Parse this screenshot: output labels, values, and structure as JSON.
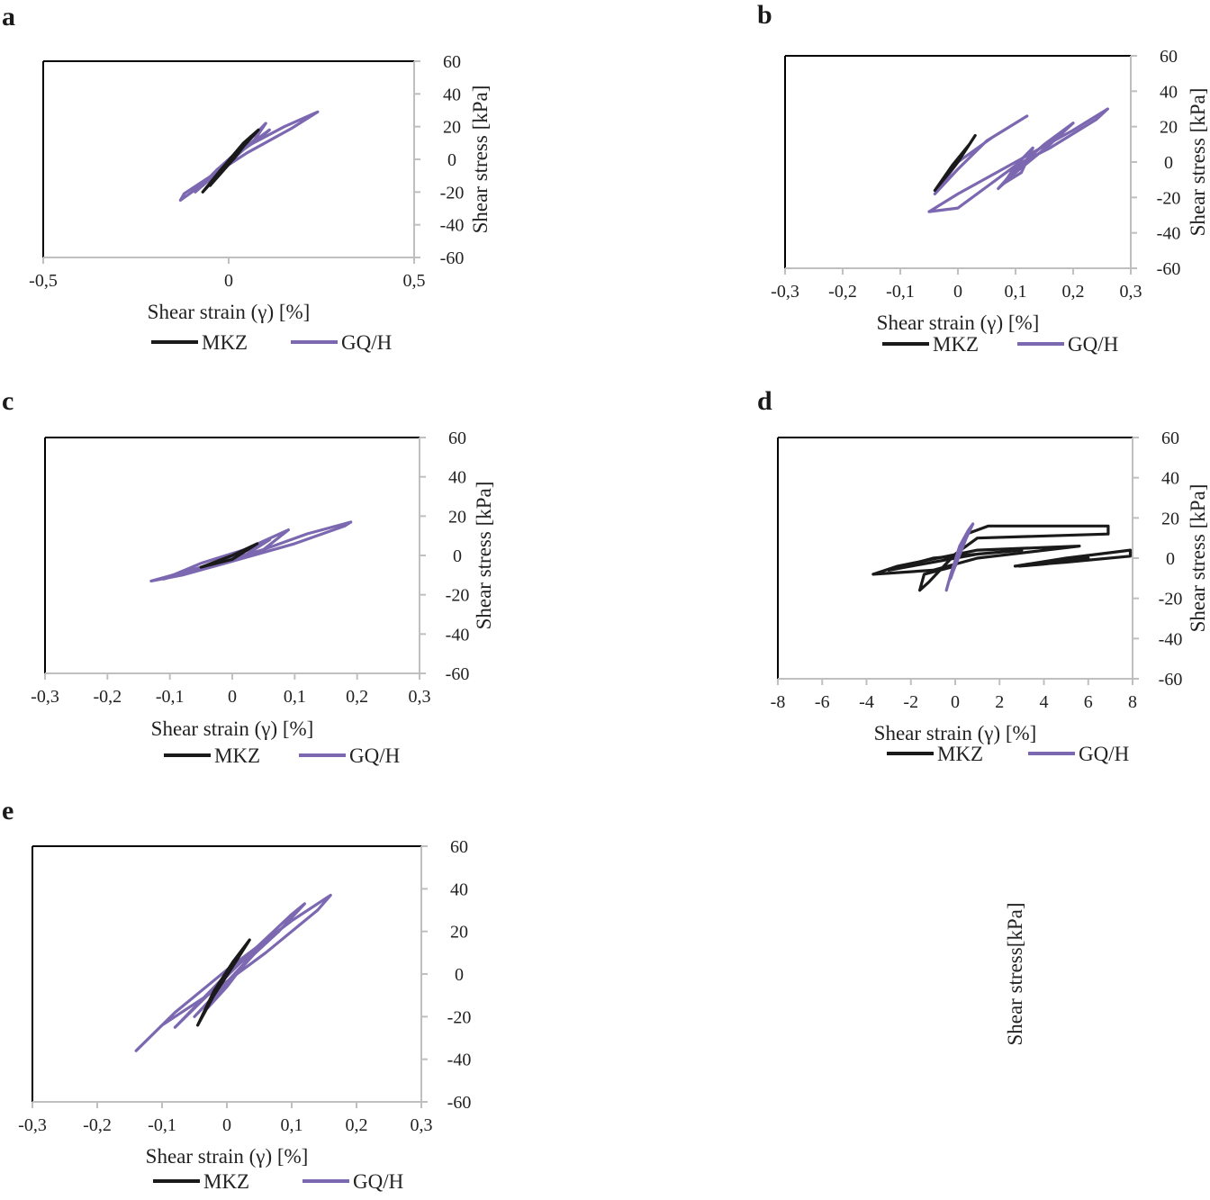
{
  "colors": {
    "mkz": "#1a1a1a",
    "gqh": "#7b68b0",
    "axis": "#bfbfbf",
    "frame": "#000000"
  },
  "chart_data": [
    {
      "panel": "a",
      "type": "line",
      "xlabel": "Shear strain (γ) [%]",
      "ylabel": "Shear stress [kPa]",
      "xlim": [
        -0.5,
        0.5
      ],
      "ylim": [
        -60,
        60
      ],
      "xticks": [
        "-0,5",
        "0",
        "0,5"
      ],
      "xtick_values": [
        -0.5,
        0,
        0.5
      ],
      "yticks": [
        "60",
        "40",
        "20",
        "0",
        "-20",
        "-40",
        "-60"
      ],
      "ytick_values": [
        60,
        40,
        20,
        0,
        -20,
        -40,
        -60
      ],
      "legend": [
        "MKZ",
        "GQ/H"
      ],
      "series": [
        {
          "name": "GQ/H",
          "loops": [
            [
              [
                -0.13,
                -25
              ],
              [
                -0.05,
                -12
              ],
              [
                0.05,
                8
              ],
              [
                0.15,
                20
              ],
              [
                0.23,
                28
              ],
              [
                0.24,
                29
              ],
              [
                0.17,
                19
              ],
              [
                0.05,
                4
              ],
              [
                -0.06,
                -12
              ],
              [
                -0.12,
                -21
              ],
              [
                -0.13,
                -25
              ]
            ],
            [
              [
                -0.09,
                -20
              ],
              [
                -0.03,
                -8
              ],
              [
                0.04,
                6
              ],
              [
                0.09,
                14
              ],
              [
                0.11,
                18
              ],
              [
                0.05,
                8
              ],
              [
                -0.03,
                -6
              ],
              [
                -0.09,
                -20
              ]
            ],
            [
              [
                -0.07,
                -16
              ],
              [
                0.0,
                -2
              ],
              [
                0.07,
                12
              ],
              [
                0.1,
                22
              ],
              [
                0.04,
                8
              ],
              [
                -0.02,
                -4
              ],
              [
                -0.07,
                -16
              ]
            ]
          ]
        },
        {
          "name": "MKZ",
          "loops": [
            [
              [
                -0.07,
                -20
              ],
              [
                -0.02,
                -6
              ],
              [
                0.04,
                10
              ],
              [
                0.08,
                18
              ],
              [
                0.04,
                8
              ],
              [
                -0.03,
                -10
              ],
              [
                -0.07,
                -20
              ]
            ],
            [
              [
                -0.05,
                -16
              ],
              [
                0.0,
                -2
              ],
              [
                0.06,
                14
              ],
              [
                0.02,
                2
              ],
              [
                -0.05,
                -16
              ]
            ]
          ]
        }
      ]
    },
    {
      "panel": "b",
      "type": "line",
      "xlabel": "Shear strain (γ) [%]",
      "ylabel": "Shear stress [kPa]",
      "xlim": [
        -0.3,
        0.3
      ],
      "ylim": [
        -60,
        60
      ],
      "xticks": [
        "-0,3",
        "-0,2",
        "-0,1",
        "0",
        "0,1",
        "0,2",
        "0,3"
      ],
      "xtick_values": [
        -0.3,
        -0.2,
        -0.1,
        0,
        0.1,
        0.2,
        0.3
      ],
      "yticks": [
        "60",
        "40",
        "20",
        "0",
        "-20",
        "-40",
        "-60"
      ],
      "ytick_values": [
        60,
        40,
        20,
        0,
        -20,
        -40,
        -60
      ],
      "legend": [
        "MKZ",
        "GQ/H"
      ],
      "series": [
        {
          "name": "GQ/H",
          "loops": [
            [
              [
                -0.05,
                -28
              ],
              [
                0.0,
                -18
              ],
              [
                0.1,
                0
              ],
              [
                0.2,
                18
              ],
              [
                0.26,
                30
              ],
              [
                0.24,
                24
              ],
              [
                0.16,
                8
              ],
              [
                0.1,
                -2
              ],
              [
                0.05,
                -14
              ],
              [
                0.0,
                -26
              ],
              [
                -0.05,
                -28
              ]
            ],
            [
              [
                -0.04,
                -18
              ],
              [
                0.0,
                -4
              ],
              [
                0.05,
                12
              ],
              [
                0.1,
                22
              ],
              [
                0.12,
                26
              ],
              [
                0.06,
                14
              ],
              [
                0.0,
                0
              ],
              [
                -0.04,
                -18
              ]
            ],
            [
              [
                0.07,
                -15
              ],
              [
                0.1,
                -4
              ],
              [
                0.15,
                10
              ],
              [
                0.2,
                22
              ],
              [
                0.16,
                10
              ],
              [
                0.1,
                -6
              ],
              [
                0.07,
                -15
              ]
            ],
            [
              [
                0.08,
                -12
              ],
              [
                0.1,
                -2
              ],
              [
                0.13,
                8
              ],
              [
                0.11,
                -6
              ],
              [
                0.08,
                -12
              ]
            ]
          ]
        },
        {
          "name": "MKZ",
          "loops": [
            [
              [
                -0.04,
                -16
              ],
              [
                -0.01,
                -2
              ],
              [
                0.02,
                10
              ],
              [
                0.03,
                15
              ],
              [
                0.0,
                0
              ],
              [
                -0.04,
                -16
              ]
            ]
          ]
        }
      ]
    },
    {
      "panel": "c",
      "type": "line",
      "xlabel": "Shear strain (γ) [%]",
      "ylabel": "Shear stress [kPa]",
      "xlim": [
        -0.3,
        0.3
      ],
      "ylim": [
        -60,
        60
      ],
      "xticks": [
        "-0,3",
        "-0,2",
        "-0,1",
        "0",
        "0,1",
        "0,2",
        "0,3"
      ],
      "xtick_values": [
        -0.3,
        -0.2,
        -0.1,
        0,
        0.1,
        0.2,
        0.3
      ],
      "yticks": [
        "60",
        "40",
        "20",
        "0",
        "-20",
        "-40",
        "-60"
      ],
      "ytick_values": [
        60,
        40,
        20,
        0,
        -20,
        -40,
        -60
      ],
      "legend": [
        "MKZ",
        "GQ/H"
      ],
      "series": [
        {
          "name": "GQ/H",
          "loops": [
            [
              [
                -0.13,
                -13
              ],
              [
                -0.05,
                -6
              ],
              [
                0.05,
                3
              ],
              [
                0.12,
                11
              ],
              [
                0.19,
                17
              ],
              [
                0.18,
                15
              ],
              [
                0.1,
                6
              ],
              [
                0.0,
                -3
              ],
              [
                -0.08,
                -10
              ],
              [
                -0.13,
                -13
              ]
            ],
            [
              [
                -0.11,
                -12
              ],
              [
                -0.05,
                -4
              ],
              [
                0.02,
                3
              ],
              [
                0.09,
                13
              ],
              [
                0.05,
                3
              ],
              [
                -0.03,
                -5
              ],
              [
                -0.11,
                -12
              ]
            ],
            [
              [
                -0.06,
                -8
              ],
              [
                0.0,
                -1
              ],
              [
                0.06,
                8
              ],
              [
                0.02,
                0
              ],
              [
                -0.06,
                -8
              ]
            ]
          ]
        },
        {
          "name": "MKZ",
          "loops": [
            [
              [
                -0.05,
                -6
              ],
              [
                0.0,
                0
              ],
              [
                0.04,
                6
              ],
              [
                0.0,
                -2
              ],
              [
                -0.05,
                -6
              ]
            ]
          ]
        }
      ]
    },
    {
      "panel": "d",
      "type": "line",
      "xlabel": "Shear strain (γ) [%]",
      "ylabel": "Shear stress [kPa]",
      "xlim": [
        -8,
        8
      ],
      "ylim": [
        -60,
        60
      ],
      "xticks": [
        "-8",
        "-6",
        "-4",
        "-2",
        "0",
        "2",
        "4",
        "6",
        "8"
      ],
      "xtick_values": [
        -8,
        -6,
        -4,
        -2,
        0,
        2,
        4,
        6,
        8
      ],
      "yticks": [
        "60",
        "40",
        "20",
        "0",
        "-20",
        "-40",
        "-60"
      ],
      "ytick_values": [
        60,
        40,
        20,
        0,
        -20,
        -40,
        -60
      ],
      "legend": [
        "MKZ",
        "GQ/H"
      ],
      "series": [
        {
          "name": "MKZ",
          "loops": [
            [
              [
                -3.7,
                -8
              ],
              [
                -1.0,
                -6
              ],
              [
                1.0,
                0
              ],
              [
                5.6,
                6
              ],
              [
                1.0,
                4
              ],
              [
                -2.6,
                -4
              ],
              [
                -3.7,
                -8
              ]
            ],
            [
              [
                -1.6,
                -16
              ],
              [
                -1.4,
                -8
              ],
              [
                0.0,
                -4
              ],
              [
                0.5,
                12
              ],
              [
                1.5,
                16
              ],
              [
                6.9,
                16
              ],
              [
                6.9,
                12
              ],
              [
                1.0,
                10
              ],
              [
                0.0,
                2
              ],
              [
                -1.2,
                -12
              ],
              [
                -1.6,
                -16
              ]
            ],
            [
              [
                -3.0,
                -6
              ],
              [
                -1.0,
                -2
              ],
              [
                1.0,
                2
              ],
              [
                3.0,
                4
              ],
              [
                -1.0,
                0
              ],
              [
                -3.0,
                -6
              ]
            ],
            [
              [
                2.7,
                -4
              ],
              [
                5.0,
                0
              ],
              [
                7.9,
                4
              ],
              [
                7.9,
                1
              ],
              [
                5.0,
                -2
              ],
              [
                2.7,
                -4
              ]
            ],
            [
              [
                2.9,
                -4
              ],
              [
                4.0,
                -2
              ],
              [
                6.0,
                0
              ],
              [
                4.0,
                -3
              ],
              [
                2.9,
                -4
              ]
            ]
          ]
        },
        {
          "name": "GQ/H",
          "loops": [
            [
              [
                -0.4,
                -16
              ],
              [
                -0.2,
                -8
              ],
              [
                0.2,
                6
              ],
              [
                0.6,
                14
              ],
              [
                0.8,
                17
              ],
              [
                0.5,
                10
              ],
              [
                0.0,
                -4
              ],
              [
                -0.3,
                -12
              ],
              [
                -0.4,
                -16
              ]
            ],
            [
              [
                -0.2,
                -10
              ],
              [
                0.1,
                0
              ],
              [
                0.4,
                10
              ],
              [
                0.1,
                0
              ],
              [
                -0.2,
                -10
              ]
            ]
          ]
        }
      ]
    },
    {
      "panel": "e",
      "type": "line",
      "xlabel": "Shear strain (γ) [%]",
      "ylabel": "Shear stress[kPa]",
      "xlim": [
        -0.3,
        0.3
      ],
      "ylim": [
        -60,
        60
      ],
      "xticks": [
        "-0,3",
        "-0,2",
        "-0,1",
        "0",
        "0,1",
        "0,2",
        "0,3"
      ],
      "xtick_values": [
        -0.3,
        -0.2,
        -0.1,
        0,
        0.1,
        0.2,
        0.3
      ],
      "yticks": [
        "60",
        "40",
        "20",
        "0",
        "-20",
        "-40",
        "-60"
      ],
      "ytick_values": [
        60,
        40,
        20,
        0,
        -20,
        -40,
        -60
      ],
      "legend": [
        "MKZ",
        "GQ/H"
      ],
      "series": [
        {
          "name": "GQ/H",
          "loops": [
            [
              [
                -0.14,
                -36
              ],
              [
                -0.08,
                -18
              ],
              [
                0.0,
                2
              ],
              [
                0.1,
                25
              ],
              [
                0.16,
                37
              ],
              [
                0.14,
                30
              ],
              [
                0.06,
                10
              ],
              [
                -0.02,
                -8
              ],
              [
                -0.1,
                -24
              ],
              [
                -0.14,
                -36
              ]
            ],
            [
              [
                -0.08,
                -25
              ],
              [
                -0.03,
                -10
              ],
              [
                0.03,
                8
              ],
              [
                0.1,
                28
              ],
              [
                0.12,
                33
              ],
              [
                0.08,
                20
              ],
              [
                0.0,
                0
              ],
              [
                -0.08,
                -25
              ]
            ],
            [
              [
                -0.05,
                -20
              ],
              [
                0.0,
                -4
              ],
              [
                0.05,
                12
              ],
              [
                0.08,
                20
              ],
              [
                0.03,
                6
              ],
              [
                -0.05,
                -20
              ]
            ],
            [
              [
                -0.03,
                -16
              ],
              [
                0.0,
                -6
              ],
              [
                0.03,
                6
              ],
              [
                0.05,
                12
              ],
              [
                0.02,
                2
              ],
              [
                -0.03,
                -16
              ]
            ]
          ]
        },
        {
          "name": "MKZ",
          "loops": [
            [
              [
                -0.045,
                -24
              ],
              [
                -0.02,
                -10
              ],
              [
                0.01,
                4
              ],
              [
                0.035,
                16
              ],
              [
                0.01,
                6
              ],
              [
                -0.02,
                -8
              ],
              [
                -0.045,
                -24
              ]
            ]
          ]
        }
      ]
    }
  ]
}
